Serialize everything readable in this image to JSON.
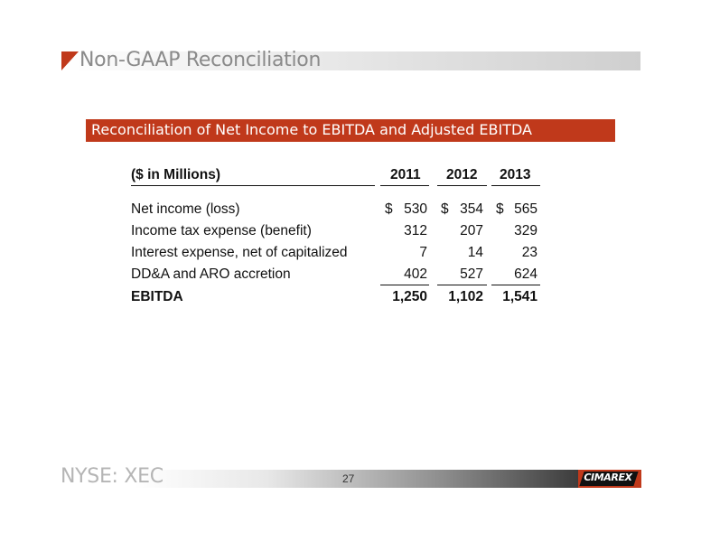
{
  "slide": {
    "title": "Non-GAAP Reconciliation",
    "section_heading": "Reconciliation of Net Income to EBITDA and Adjusted EBITDA",
    "footer_ticker": "NYSE: XEC",
    "page_number": "27",
    "logo_text": "CIMAREX"
  },
  "table": {
    "unit_header": "($ in Millions)",
    "years": [
      "2011",
      "2012",
      "2013"
    ],
    "rows": [
      {
        "label": "Net income (loss)",
        "currency": "$",
        "values": [
          "530",
          "354",
          "565"
        ]
      },
      {
        "label": "Income tax expense (benefit)",
        "currency": "",
        "values": [
          "312",
          "207",
          "329"
        ]
      },
      {
        "label": "Interest expense, net of capitalized",
        "currency": "",
        "values": [
          "7",
          "14",
          "23"
        ]
      },
      {
        "label": "DD&A and ARO accretion",
        "currency": "",
        "values": [
          "402",
          "527",
          "624"
        ]
      }
    ],
    "total": {
      "label": "EBITDA",
      "values": [
        "1,250",
        "1,102",
        "1,541"
      ]
    }
  },
  "colors": {
    "accent": "#c0391b",
    "title_gray": "#8a8a8a"
  }
}
